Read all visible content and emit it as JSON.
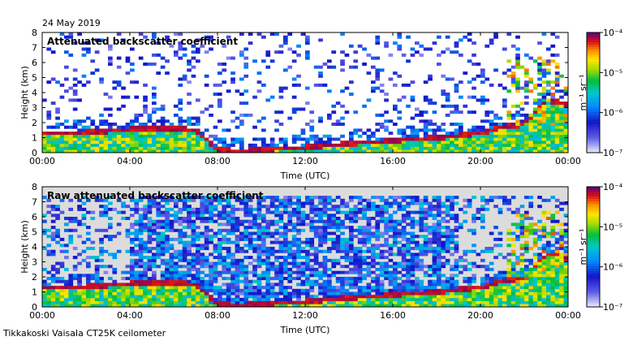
{
  "date": "24 May 2019",
  "footer": "Tikkakoski Vaisala CT25K ceilometer",
  "colormap_hint": "rainbow blue-cyan-green-yellow-red-purple on white/grey background",
  "chart_data": [
    {
      "type": "heatmap",
      "title": "Attenuated backscatter coefficient",
      "xlabel": "Time (UTC)",
      "ylabel": "Height (km)",
      "xlim": [
        "00:00",
        "24:00"
      ],
      "ylim": [
        0,
        8
      ],
      "x_ticks": [
        "00:00",
        "04:00",
        "08:00",
        "12:00",
        "16:00",
        "20:00",
        "00:00"
      ],
      "y_ticks": [
        "0",
        "1",
        "2",
        "3",
        "4",
        "5",
        "6",
        "7",
        "8"
      ],
      "colorbar": {
        "scale": "log",
        "range": [
          1e-07,
          0.0001
        ],
        "tick_labels": [
          "10⁻⁷",
          "10⁻⁶",
          "10⁻⁵",
          "10⁻⁴"
        ],
        "unit": "m⁻¹ sr⁻¹"
      },
      "background": "white",
      "layer_top_km": [
        [
          0,
          1.3
        ],
        [
          1,
          1.3
        ],
        [
          2,
          1.35
        ],
        [
          3,
          1.45
        ],
        [
          4,
          1.55
        ],
        [
          5,
          1.6
        ],
        [
          6,
          1.65
        ],
        [
          7,
          1.5
        ],
        [
          8,
          0.2
        ],
        [
          9,
          0.1
        ],
        [
          10,
          0.2
        ],
        [
          12,
          0.35
        ],
        [
          14,
          0.6
        ],
        [
          16,
          0.8
        ],
        [
          18,
          1.0
        ],
        [
          20,
          1.3
        ],
        [
          21,
          1.7
        ],
        [
          22,
          1.9
        ],
        [
          23,
          3.5
        ],
        [
          24,
          3.2
        ]
      ]
    },
    {
      "type": "heatmap",
      "title": "Raw attenuated backscatter coefficient",
      "xlabel": "Time (UTC)",
      "ylabel": "Height (km)",
      "xlim": [
        "00:00",
        "24:00"
      ],
      "ylim": [
        0,
        8
      ],
      "x_ticks": [
        "00:00",
        "04:00",
        "08:00",
        "12:00",
        "16:00",
        "20:00",
        "00:00"
      ],
      "y_ticks": [
        "0",
        "1",
        "2",
        "3",
        "4",
        "5",
        "6",
        "7",
        "8"
      ],
      "colorbar": {
        "scale": "log",
        "range": [
          1e-07,
          0.0001
        ],
        "tick_labels": [
          "10⁻⁷",
          "10⁻⁶",
          "10⁻⁵",
          "10⁻⁴"
        ],
        "unit": "m⁻¹ sr⁻¹"
      },
      "background": "lightgrey",
      "layer_top_km": [
        [
          0,
          1.3
        ],
        [
          1,
          1.3
        ],
        [
          2,
          1.35
        ],
        [
          3,
          1.45
        ],
        [
          4,
          1.55
        ],
        [
          5,
          1.6
        ],
        [
          6,
          1.65
        ],
        [
          7,
          1.5
        ],
        [
          8,
          0.2
        ],
        [
          9,
          0.1
        ],
        [
          10,
          0.2
        ],
        [
          12,
          0.35
        ],
        [
          14,
          0.6
        ],
        [
          16,
          0.8
        ],
        [
          18,
          1.0
        ],
        [
          20,
          1.3
        ],
        [
          21,
          1.7
        ],
        [
          22,
          1.9
        ],
        [
          23,
          3.5
        ],
        [
          24,
          3.2
        ]
      ]
    }
  ]
}
